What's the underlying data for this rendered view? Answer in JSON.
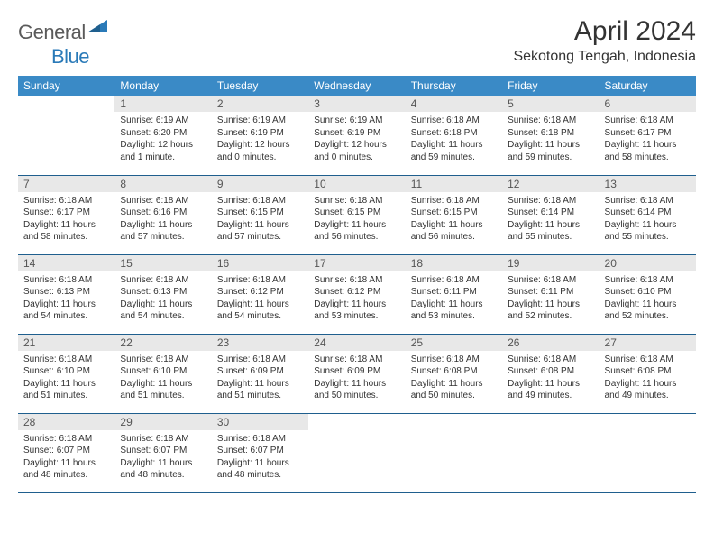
{
  "logo": {
    "general": "General",
    "blue": "Blue"
  },
  "header": {
    "title": "April 2024",
    "location": "Sekotong Tengah, Indonesia"
  },
  "weekday_header_color": "#3a8ac6",
  "weekday_text_color": "#ffffff",
  "rule_color": "#1f5f8e",
  "daynum_bg": "#e8e8e8",
  "weekdays": [
    "Sunday",
    "Monday",
    "Tuesday",
    "Wednesday",
    "Thursday",
    "Friday",
    "Saturday"
  ],
  "weeks": [
    [
      {
        "n": "",
        "lines": []
      },
      {
        "n": "1",
        "lines": [
          "Sunrise: 6:19 AM",
          "Sunset: 6:20 PM",
          "Daylight: 12 hours and 1 minute."
        ]
      },
      {
        "n": "2",
        "lines": [
          "Sunrise: 6:19 AM",
          "Sunset: 6:19 PM",
          "Daylight: 12 hours and 0 minutes."
        ]
      },
      {
        "n": "3",
        "lines": [
          "Sunrise: 6:19 AM",
          "Sunset: 6:19 PM",
          "Daylight: 12 hours and 0 minutes."
        ]
      },
      {
        "n": "4",
        "lines": [
          "Sunrise: 6:18 AM",
          "Sunset: 6:18 PM",
          "Daylight: 11 hours and 59 minutes."
        ]
      },
      {
        "n": "5",
        "lines": [
          "Sunrise: 6:18 AM",
          "Sunset: 6:18 PM",
          "Daylight: 11 hours and 59 minutes."
        ]
      },
      {
        "n": "6",
        "lines": [
          "Sunrise: 6:18 AM",
          "Sunset: 6:17 PM",
          "Daylight: 11 hours and 58 minutes."
        ]
      }
    ],
    [
      {
        "n": "7",
        "lines": [
          "Sunrise: 6:18 AM",
          "Sunset: 6:17 PM",
          "Daylight: 11 hours and 58 minutes."
        ]
      },
      {
        "n": "8",
        "lines": [
          "Sunrise: 6:18 AM",
          "Sunset: 6:16 PM",
          "Daylight: 11 hours and 57 minutes."
        ]
      },
      {
        "n": "9",
        "lines": [
          "Sunrise: 6:18 AM",
          "Sunset: 6:15 PM",
          "Daylight: 11 hours and 57 minutes."
        ]
      },
      {
        "n": "10",
        "lines": [
          "Sunrise: 6:18 AM",
          "Sunset: 6:15 PM",
          "Daylight: 11 hours and 56 minutes."
        ]
      },
      {
        "n": "11",
        "lines": [
          "Sunrise: 6:18 AM",
          "Sunset: 6:15 PM",
          "Daylight: 11 hours and 56 minutes."
        ]
      },
      {
        "n": "12",
        "lines": [
          "Sunrise: 6:18 AM",
          "Sunset: 6:14 PM",
          "Daylight: 11 hours and 55 minutes."
        ]
      },
      {
        "n": "13",
        "lines": [
          "Sunrise: 6:18 AM",
          "Sunset: 6:14 PM",
          "Daylight: 11 hours and 55 minutes."
        ]
      }
    ],
    [
      {
        "n": "14",
        "lines": [
          "Sunrise: 6:18 AM",
          "Sunset: 6:13 PM",
          "Daylight: 11 hours and 54 minutes."
        ]
      },
      {
        "n": "15",
        "lines": [
          "Sunrise: 6:18 AM",
          "Sunset: 6:13 PM",
          "Daylight: 11 hours and 54 minutes."
        ]
      },
      {
        "n": "16",
        "lines": [
          "Sunrise: 6:18 AM",
          "Sunset: 6:12 PM",
          "Daylight: 11 hours and 54 minutes."
        ]
      },
      {
        "n": "17",
        "lines": [
          "Sunrise: 6:18 AM",
          "Sunset: 6:12 PM",
          "Daylight: 11 hours and 53 minutes."
        ]
      },
      {
        "n": "18",
        "lines": [
          "Sunrise: 6:18 AM",
          "Sunset: 6:11 PM",
          "Daylight: 11 hours and 53 minutes."
        ]
      },
      {
        "n": "19",
        "lines": [
          "Sunrise: 6:18 AM",
          "Sunset: 6:11 PM",
          "Daylight: 11 hours and 52 minutes."
        ]
      },
      {
        "n": "20",
        "lines": [
          "Sunrise: 6:18 AM",
          "Sunset: 6:10 PM",
          "Daylight: 11 hours and 52 minutes."
        ]
      }
    ],
    [
      {
        "n": "21",
        "lines": [
          "Sunrise: 6:18 AM",
          "Sunset: 6:10 PM",
          "Daylight: 11 hours and 51 minutes."
        ]
      },
      {
        "n": "22",
        "lines": [
          "Sunrise: 6:18 AM",
          "Sunset: 6:10 PM",
          "Daylight: 11 hours and 51 minutes."
        ]
      },
      {
        "n": "23",
        "lines": [
          "Sunrise: 6:18 AM",
          "Sunset: 6:09 PM",
          "Daylight: 11 hours and 51 minutes."
        ]
      },
      {
        "n": "24",
        "lines": [
          "Sunrise: 6:18 AM",
          "Sunset: 6:09 PM",
          "Daylight: 11 hours and 50 minutes."
        ]
      },
      {
        "n": "25",
        "lines": [
          "Sunrise: 6:18 AM",
          "Sunset: 6:08 PM",
          "Daylight: 11 hours and 50 minutes."
        ]
      },
      {
        "n": "26",
        "lines": [
          "Sunrise: 6:18 AM",
          "Sunset: 6:08 PM",
          "Daylight: 11 hours and 49 minutes."
        ]
      },
      {
        "n": "27",
        "lines": [
          "Sunrise: 6:18 AM",
          "Sunset: 6:08 PM",
          "Daylight: 11 hours and 49 minutes."
        ]
      }
    ],
    [
      {
        "n": "28",
        "lines": [
          "Sunrise: 6:18 AM",
          "Sunset: 6:07 PM",
          "Daylight: 11 hours and 48 minutes."
        ]
      },
      {
        "n": "29",
        "lines": [
          "Sunrise: 6:18 AM",
          "Sunset: 6:07 PM",
          "Daylight: 11 hours and 48 minutes."
        ]
      },
      {
        "n": "30",
        "lines": [
          "Sunrise: 6:18 AM",
          "Sunset: 6:07 PM",
          "Daylight: 11 hours and 48 minutes."
        ]
      },
      {
        "n": "",
        "lines": []
      },
      {
        "n": "",
        "lines": []
      },
      {
        "n": "",
        "lines": []
      },
      {
        "n": "",
        "lines": []
      }
    ]
  ]
}
